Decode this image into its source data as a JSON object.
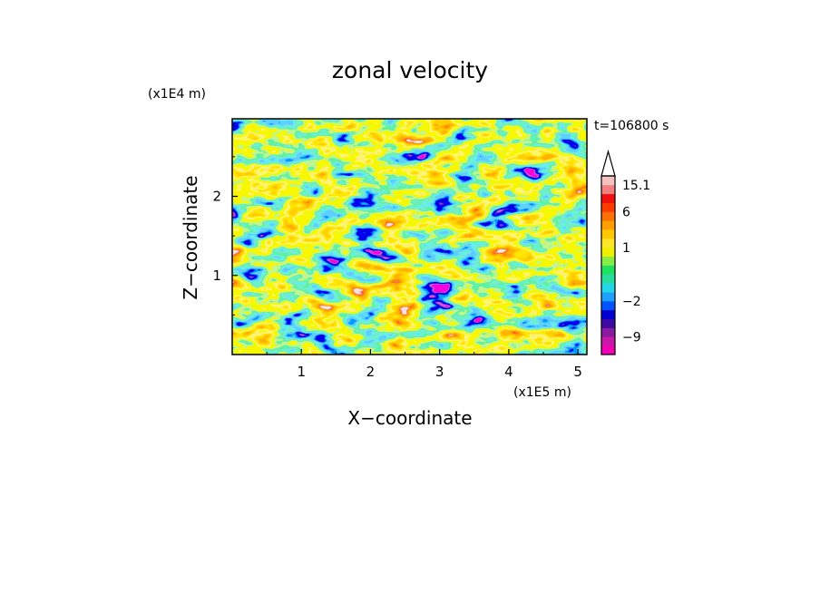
{
  "chart_data": {
    "type": "heatmap",
    "title": "zonal velocity",
    "xlabel": "X−coordinate",
    "ylabel": "Z−coordinate",
    "x_unit": "(x1E5 m)",
    "y_unit": "(x1E4 m)",
    "time_label": "t=106800 s",
    "xlim": [
      0,
      5.13
    ],
    "ylim": [
      0,
      2.98
    ],
    "x_ticks": [
      "1",
      "2",
      "3",
      "4",
      "5"
    ],
    "y_ticks": [
      "1",
      "2"
    ],
    "colorbar": {
      "levels": [
        -13,
        -11,
        -9,
        -7,
        -5,
        -3,
        -2,
        -1.5,
        -1,
        -0.5,
        0,
        0.5,
        1,
        1.5,
        2,
        3,
        6,
        9,
        12,
        15.1,
        18
      ],
      "tick_labels": [
        "15.1",
        "6",
        "1",
        "−2",
        "−9"
      ],
      "tick_values": [
        15.1,
        6,
        1,
        -2,
        -9
      ],
      "extend": "max",
      "colors": [
        "#f200b4",
        "#c818a8",
        "#8a1aa0",
        "#3c0aa0",
        "#0000d2",
        "#0055ff",
        "#1ea0ff",
        "#22d6e6",
        "#28dca0",
        "#20e060",
        "#88ec48",
        "#eef000",
        "#ffe62a",
        "#ffc800",
        "#ffa000",
        "#ff7000",
        "#ff3a00",
        "#f01010",
        "#f28080",
        "#f4c0c0"
      ]
    }
  }
}
